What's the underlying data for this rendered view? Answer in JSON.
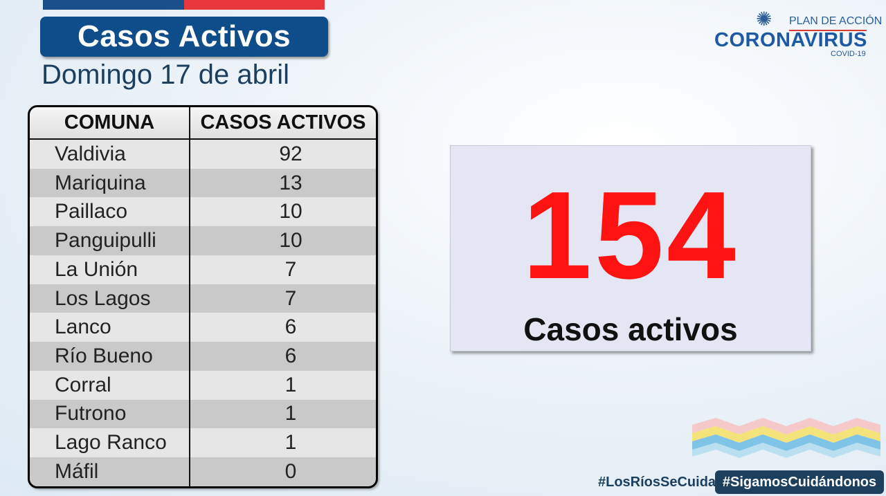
{
  "header": {
    "title": "Casos Activos",
    "date": "Domingo 17 de abril",
    "brand_colors": {
      "blue": "#0f4c8a",
      "red": "#e8383d"
    }
  },
  "logo": {
    "plan": "PLAN DE ACCIÓN",
    "name": "CORONAVIRUS",
    "sub": "COVID-19",
    "icon": "virus-icon"
  },
  "table": {
    "headers": [
      "COMUNA",
      "CASOS ACTIVOS"
    ],
    "rows": [
      {
        "comuna": "Valdivia",
        "casos": "92"
      },
      {
        "comuna": "Mariquina",
        "casos": "13"
      },
      {
        "comuna": "Paillaco",
        "casos": "10"
      },
      {
        "comuna": "Panguipulli",
        "casos": "10"
      },
      {
        "comuna": "La Unión",
        "casos": "7"
      },
      {
        "comuna": "Los Lagos",
        "casos": "7"
      },
      {
        "comuna": "Lanco",
        "casos": "6"
      },
      {
        "comuna": "Río Bueno",
        "casos": "6"
      },
      {
        "comuna": "Corral",
        "casos": "1"
      },
      {
        "comuna": "Futrono",
        "casos": "1"
      },
      {
        "comuna": "Lago Ranco",
        "casos": "1"
      },
      {
        "comuna": "Máfil",
        "casos": "0"
      }
    ]
  },
  "total": {
    "number": "154",
    "label": "Casos activos",
    "color": "#ff1212"
  },
  "footer": {
    "hashtag1": "#LosRíosSeCuida",
    "hashtag2": "#SigamosCuidándonos",
    "decoration": "waves-graphic"
  }
}
